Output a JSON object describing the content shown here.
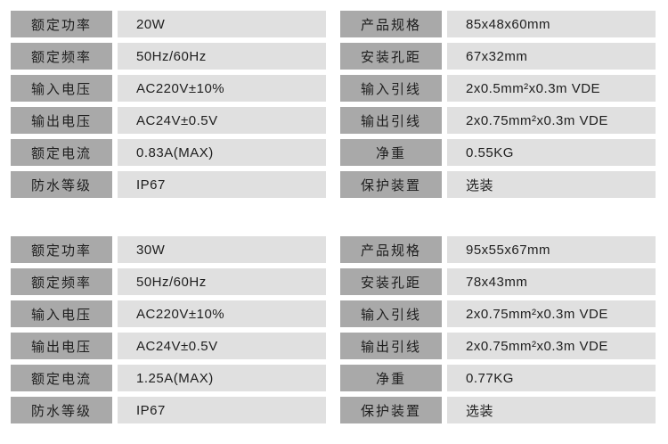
{
  "tables": [
    {
      "left": [
        {
          "label": "额定功率",
          "value": "20W"
        },
        {
          "label": "额定频率",
          "value": "50Hz/60Hz"
        },
        {
          "label": "输入电压",
          "value": "AC220V±10%"
        },
        {
          "label": "输出电压",
          "value": "AC24V±0.5V"
        },
        {
          "label": "额定电流",
          "value": "0.83A(MAX)"
        },
        {
          "label": "防水等级",
          "value": "IP67"
        }
      ],
      "right": [
        {
          "label": "产品规格",
          "value": "85x48x60mm"
        },
        {
          "label": "安装孔距",
          "value": "67x32mm"
        },
        {
          "label": "输入引线",
          "value": "2x0.5mm²x0.3m VDE"
        },
        {
          "label": "输出引线",
          "value": "2x0.75mm²x0.3m VDE"
        },
        {
          "label": "净重",
          "value": "0.55KG"
        },
        {
          "label": "保护装置",
          "value": "选装"
        }
      ]
    },
    {
      "left": [
        {
          "label": "额定功率",
          "value": "30W"
        },
        {
          "label": "额定频率",
          "value": "50Hz/60Hz"
        },
        {
          "label": "输入电压",
          "value": "AC220V±10%"
        },
        {
          "label": "输出电压",
          "value": "AC24V±0.5V"
        },
        {
          "label": "额定电流",
          "value": "1.25A(MAX)"
        },
        {
          "label": "防水等级",
          "value": "IP67"
        }
      ],
      "right": [
        {
          "label": "产品规格",
          "value": "95x55x67mm"
        },
        {
          "label": "安装孔距",
          "value": "78x43mm"
        },
        {
          "label": "输入引线",
          "value": "2x0.75mm²x0.3m VDE"
        },
        {
          "label": "输出引线",
          "value": "2x0.75mm²x0.3m VDE"
        },
        {
          "label": "净重",
          "value": "0.77KG"
        },
        {
          "label": "保护装置",
          "value": "选装"
        }
      ]
    }
  ]
}
